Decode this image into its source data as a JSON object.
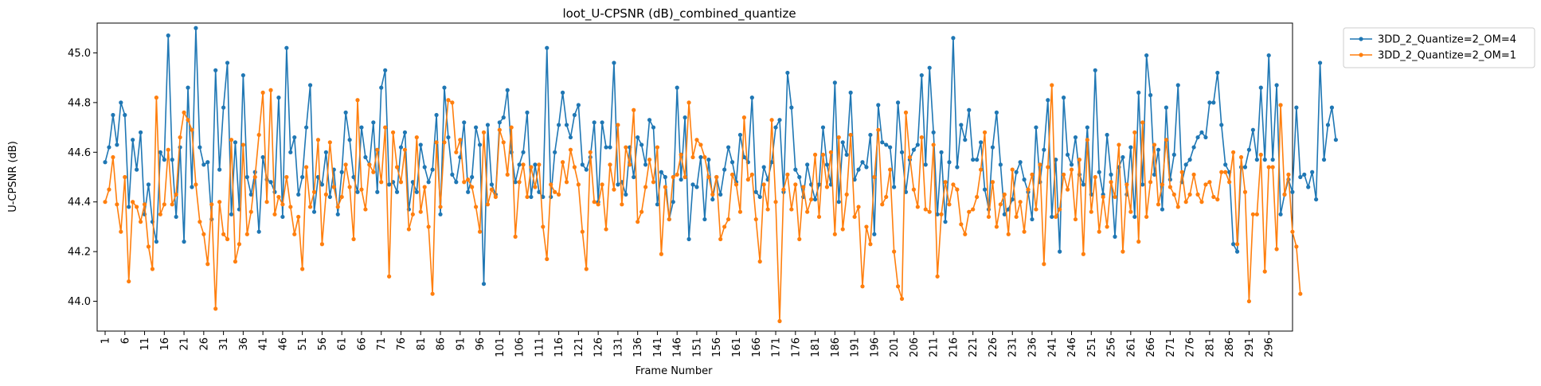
{
  "chart_data": {
    "type": "line",
    "title": "loot_U-CPSNR (dB)_combined_quantize",
    "xlabel": "Frame Number",
    "ylabel": "U-CPSNR (dB)",
    "xlim": [
      1,
      300
    ],
    "ylim": [
      43.88,
      45.12
    ],
    "yticks": [
      44.0,
      44.2,
      44.4,
      44.6,
      44.8,
      45.0
    ],
    "ytick_labels": [
      "44.0",
      "44.2",
      "44.4",
      "44.6",
      "44.8",
      "45.0"
    ],
    "xticks": [
      1,
      6,
      11,
      16,
      21,
      26,
      31,
      36,
      41,
      46,
      51,
      56,
      61,
      66,
      71,
      76,
      81,
      86,
      91,
      96,
      101,
      106,
      111,
      116,
      121,
      126,
      131,
      136,
      141,
      146,
      151,
      156,
      161,
      166,
      171,
      176,
      181,
      186,
      191,
      196,
      201,
      206,
      211,
      216,
      221,
      226,
      231,
      236,
      241,
      246,
      251,
      256,
      261,
      266,
      271,
      276,
      281,
      286,
      291,
      296
    ],
    "xtick_labels": [
      "1",
      "6",
      "11",
      "16",
      "21",
      "26",
      "31",
      "36",
      "41",
      "46",
      "51",
      "56",
      "61",
      "66",
      "71",
      "76",
      "81",
      "86",
      "91",
      "96",
      "101",
      "106",
      "111",
      "116",
      "121",
      "126",
      "131",
      "136",
      "141",
      "146",
      "151",
      "156",
      "161",
      "166",
      "171",
      "176",
      "181",
      "186",
      "191",
      "196",
      "201",
      "206",
      "211",
      "216",
      "221",
      "226",
      "231",
      "236",
      "241",
      "246",
      "251",
      "256",
      "261",
      "266",
      "271",
      "276",
      "281",
      "286",
      "291",
      "296"
    ],
    "grid": false,
    "legend": "outside-top-right",
    "x_start": 1,
    "series": [
      {
        "name": "3DD_2_Quantize=2_OM=4",
        "color": "#1f77b4",
        "values": [
          44.56,
          44.62,
          44.75,
          44.63,
          44.8,
          44.75,
          44.38,
          44.65,
          44.53,
          44.68,
          44.35,
          44.47,
          44.32,
          44.24,
          44.6,
          44.57,
          45.07,
          44.57,
          44.34,
          44.62,
          44.24,
          44.86,
          44.46,
          45.1,
          44.62,
          44.55,
          44.56,
          44.33,
          44.93,
          44.53,
          44.78,
          44.96,
          44.35,
          44.64,
          44.37,
          44.91,
          44.5,
          44.43,
          44.52,
          44.28,
          44.58,
          44.49,
          44.48,
          44.44,
          44.82,
          44.34,
          45.02,
          44.6,
          44.66,
          44.43,
          44.5,
          44.7,
          44.87,
          44.36,
          44.5,
          44.47,
          44.6,
          44.42,
          44.53,
          44.35,
          44.52,
          44.76,
          44.65,
          44.5,
          44.44,
          44.7,
          44.58,
          44.55,
          44.72,
          44.44,
          44.86,
          44.93,
          44.47,
          44.48,
          44.44,
          44.62,
          44.68,
          44.37,
          44.48,
          44.44,
          44.63,
          44.54,
          44.48,
          44.53,
          44.75,
          44.35,
          44.86,
          44.66,
          44.51,
          44.48,
          44.58,
          44.72,
          44.44,
          44.5,
          44.7,
          44.63,
          44.07,
          44.71,
          44.47,
          44.43,
          44.72,
          44.74,
          44.85,
          44.6,
          44.48,
          44.55,
          44.6,
          44.76,
          44.42,
          44.55,
          44.44,
          44.42,
          45.02,
          44.42,
          44.6,
          44.71,
          44.84,
          44.71,
          44.66,
          44.75,
          44.79,
          44.55,
          44.53,
          44.58,
          44.72,
          44.4,
          44.72,
          44.62,
          44.62,
          44.96,
          44.47,
          44.48,
          44.43,
          44.62,
          44.5,
          44.66,
          44.63,
          44.55,
          44.73,
          44.7,
          44.39,
          44.52,
          44.5,
          44.33,
          44.4,
          44.86,
          44.49,
          44.74,
          44.25,
          44.47,
          44.46,
          44.58,
          44.33,
          44.57,
          44.41,
          44.5,
          44.43,
          44.53,
          44.62,
          44.56,
          44.48,
          44.67,
          44.58,
          44.56,
          44.82,
          44.44,
          44.42,
          44.54,
          44.49,
          44.56,
          44.7,
          44.73,
          44.44,
          44.92,
          44.78,
          44.53,
          44.5,
          44.42,
          44.55,
          44.47,
          44.41,
          44.47,
          44.7,
          44.55,
          44.47,
          44.88,
          44.4,
          44.64,
          44.59,
          44.84,
          44.49,
          44.53,
          44.56,
          44.54,
          44.67,
          44.27,
          44.79,
          44.64,
          44.63,
          44.62,
          44.46,
          44.8,
          44.6,
          44.44,
          44.57,
          44.61,
          44.63,
          44.91,
          44.55,
          44.94,
          44.68,
          44.35,
          44.6,
          44.32,
          44.56,
          45.06,
          44.54,
          44.71,
          44.65,
          44.77,
          44.57,
          44.57,
          44.64,
          44.45,
          44.37,
          44.62,
          44.76,
          44.55,
          44.35,
          44.37,
          44.41,
          44.52,
          44.56,
          44.49,
          44.44,
          44.33,
          44.7,
          44.48,
          44.61,
          44.81,
          44.34,
          44.57,
          44.2,
          44.82,
          44.59,
          44.55,
          44.66,
          44.51,
          44.47,
          44.7,
          44.43,
          44.93,
          44.52,
          44.43,
          44.67,
          44.51,
          44.26,
          44.54,
          44.58,
          44.43,
          44.62,
          44.34,
          44.84,
          44.47,
          44.99,
          44.83,
          44.51,
          44.61,
          44.37,
          44.78,
          44.49,
          44.59,
          44.87,
          44.48,
          44.55,
          44.57,
          44.62,
          44.66,
          44.68,
          44.66,
          44.8,
          44.8,
          44.92,
          44.71,
          44.55,
          44.52,
          44.23,
          44.2,
          44.54,
          44.54,
          44.61,
          44.69,
          44.57,
          44.86,
          44.57,
          44.99,
          44.57,
          44.87,
          44.35,
          44.43,
          44.49,
          44.44,
          44.78,
          44.5,
          44.51,
          44.46,
          44.52,
          44.41,
          44.96,
          44.57,
          44.71,
          44.78,
          44.65
        ]
      },
      {
        "name": "3DD_2_Quantize=2_OM=1",
        "color": "#ff7f0e",
        "values": [
          44.4,
          44.45,
          44.58,
          44.39,
          44.28,
          44.5,
          44.08,
          44.4,
          44.38,
          44.32,
          44.39,
          44.22,
          44.13,
          44.82,
          44.35,
          44.39,
          44.61,
          44.39,
          44.43,
          44.66,
          44.76,
          44.73,
          44.69,
          44.47,
          44.32,
          44.27,
          44.15,
          44.39,
          43.97,
          44.4,
          44.27,
          44.25,
          44.65,
          44.16,
          44.23,
          44.63,
          44.27,
          44.36,
          44.5,
          44.67,
          44.84,
          44.4,
          44.85,
          44.35,
          44.42,
          44.39,
          44.5,
          44.38,
          44.27,
          44.34,
          44.13,
          44.54,
          44.38,
          44.44,
          44.65,
          44.23,
          44.43,
          44.64,
          44.46,
          44.38,
          44.42,
          44.55,
          44.46,
          44.25,
          44.81,
          44.45,
          44.37,
          44.55,
          44.52,
          44.61,
          44.48,
          44.7,
          44.1,
          44.68,
          44.54,
          44.48,
          44.61,
          44.29,
          44.35,
          44.66,
          44.36,
          44.46,
          44.3,
          44.03,
          44.64,
          44.38,
          44.64,
          44.81,
          44.8,
          44.6,
          44.65,
          44.48,
          44.49,
          44.46,
          44.38,
          44.28,
          44.68,
          44.39,
          44.45,
          44.42,
          44.69,
          44.64,
          44.51,
          44.7,
          44.26,
          44.48,
          44.55,
          44.42,
          44.54,
          44.46,
          44.55,
          44.3,
          44.17,
          44.47,
          44.44,
          44.43,
          44.56,
          44.48,
          44.61,
          44.54,
          44.47,
          44.28,
          44.13,
          44.6,
          44.4,
          44.39,
          44.47,
          44.29,
          44.55,
          44.45,
          44.71,
          44.39,
          44.62,
          44.55,
          44.77,
          44.32,
          44.36,
          44.46,
          44.57,
          44.48,
          44.62,
          44.19,
          44.46,
          44.33,
          44.5,
          44.51,
          44.59,
          44.5,
          44.8,
          44.58,
          44.65,
          44.63,
          44.58,
          44.5,
          44.43,
          44.5,
          44.25,
          44.3,
          44.33,
          44.51,
          44.47,
          44.36,
          44.74,
          44.49,
          44.51,
          44.33,
          44.16,
          44.47,
          44.37,
          44.73,
          44.4,
          43.92,
          44.45,
          44.51,
          44.37,
          44.47,
          44.25,
          44.46,
          44.36,
          44.41,
          44.59,
          44.34,
          44.59,
          44.46,
          44.6,
          44.27,
          44.66,
          44.29,
          44.43,
          44.67,
          44.34,
          44.38,
          44.06,
          44.3,
          44.23,
          44.5,
          44.69,
          44.39,
          44.42,
          44.53,
          44.2,
          44.06,
          44.01,
          44.76,
          44.58,
          44.45,
          44.38,
          44.66,
          44.37,
          44.36,
          44.63,
          44.1,
          44.35,
          44.48,
          44.39,
          44.47,
          44.45,
          44.31,
          44.27,
          44.36,
          44.37,
          44.42,
          44.53,
          44.68,
          44.34,
          44.48,
          44.3,
          44.39,
          44.43,
          44.27,
          44.53,
          44.34,
          44.4,
          44.28,
          44.45,
          44.51,
          44.37,
          44.55,
          44.15,
          44.54,
          44.87,
          44.34,
          44.37,
          44.51,
          44.45,
          44.53,
          44.33,
          44.57,
          44.19,
          44.65,
          44.36,
          44.5,
          44.28,
          44.42,
          44.3,
          44.48,
          44.42,
          44.63,
          44.2,
          44.47,
          44.36,
          44.68,
          44.24,
          44.72,
          44.34,
          44.48,
          44.63,
          44.39,
          44.47,
          44.65,
          44.46,
          44.43,
          44.38,
          44.52,
          44.4,
          44.43,
          44.51,
          44.43,
          44.4,
          44.47,
          44.48,
          44.42,
          44.41,
          44.52,
          44.52,
          44.48,
          44.6,
          44.23,
          44.58,
          44.44,
          44.0,
          44.35,
          44.35,
          44.59,
          44.12,
          44.54,
          44.54,
          44.21,
          44.79,
          44.43,
          44.51,
          44.28,
          44.22,
          44.03
        ]
      }
    ]
  }
}
